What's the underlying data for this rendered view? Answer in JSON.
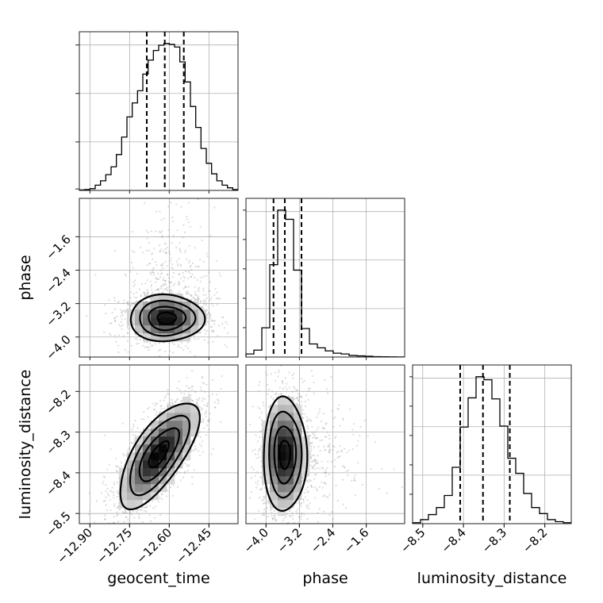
{
  "chart_data": {
    "type": "corner",
    "parameters": [
      "geocent_time",
      "phase",
      "luminosity_distance"
    ],
    "axes": {
      "geocent_time": {
        "label": "geocent_time",
        "range": [
          -12.94,
          -12.34
        ],
        "ticks": [
          -12.9,
          -12.75,
          -12.6,
          -12.45
        ],
        "tick_labels": [
          "−12.90",
          "−12.75",
          "−12.60",
          "−12.45"
        ]
      },
      "phase": {
        "label": "phase",
        "range": [
          -4.48,
          -0.68
        ],
        "ticks": [
          -4.0,
          -3.2,
          -2.4,
          -1.6
        ],
        "tick_labels": [
          "−4.0",
          "−3.2",
          "−2.4",
          "−1.6"
        ]
      },
      "luminosity_distance": {
        "label": "luminosity_distance",
        "range": [
          -8.525,
          -8.135
        ],
        "ticks": [
          -8.5,
          -8.4,
          -8.3,
          -8.2
        ],
        "tick_labels": [
          "−8.5",
          "−8.4",
          "−8.3",
          "−8.2"
        ]
      }
    },
    "histograms": [
      {
        "parameter": "geocent_time",
        "bin_edges": [
          -12.94,
          -12.92,
          -12.9,
          -12.88,
          -12.86,
          -12.84,
          -12.82,
          -12.8,
          -12.78,
          -12.76,
          -12.74,
          -12.72,
          -12.7,
          -12.68,
          -12.66,
          -12.64,
          -12.62,
          -12.6,
          -12.58,
          -12.56,
          -12.54,
          -12.52,
          -12.5,
          -12.48,
          -12.46,
          -12.44,
          -12.42,
          -12.4,
          -12.38,
          -12.36,
          -12.34
        ],
        "counts": [
          0.5,
          1,
          2,
          6,
          11,
          18,
          27,
          41,
          61,
          84,
          100,
          114,
          133,
          149,
          160,
          166,
          168,
          167,
          164,
          147,
          124,
          96,
          72,
          48,
          31,
          19,
          11,
          6,
          3,
          1
        ],
        "quantiles": [
          -12.685,
          -12.617,
          -12.545
        ]
      },
      {
        "parameter": "phase",
        "bin_edges": [
          -4.48,
          -4.29,
          -4.1,
          -3.91,
          -3.72,
          -3.53,
          -3.34,
          -3.15,
          -2.96,
          -2.77,
          -2.58,
          -2.39,
          -2.2,
          -2.01,
          -1.82,
          -1.63,
          -1.44,
          -1.25,
          -1.06,
          -0.87,
          -0.68
        ],
        "counts": [
          4,
          9,
          38,
          120,
          191,
          179,
          113,
          37,
          17,
          12,
          8,
          5,
          4,
          2,
          1.5,
          1,
          0.5,
          0.3,
          0.2,
          0.1
        ],
        "quantiles": [
          -3.82,
          -3.55,
          -3.15
        ]
      },
      {
        "parameter": "luminosity_distance",
        "bin_edges": [
          -8.525,
          -8.5055,
          -8.486,
          -8.4665,
          -8.447,
          -8.4275,
          -8.408,
          -8.3885,
          -8.369,
          -8.3495,
          -8.33,
          -8.3105,
          -8.291,
          -8.2715,
          -8.252,
          -8.2325,
          -8.213,
          -8.1935,
          -8.174,
          -8.1545,
          -8.135
        ],
        "counts": [
          1,
          4,
          9,
          16,
          28,
          56,
          96,
          125,
          146,
          143,
          124,
          97,
          65,
          50,
          30,
          16,
          10,
          4,
          2,
          1
        ],
        "quantiles": [
          -8.408,
          -8.352,
          -8.286
        ]
      }
    ],
    "joint_panels": [
      {
        "x": "geocent_time",
        "y": "phase",
        "peak": [
          -12.61,
          -3.55
        ],
        "sigma": [
          0.07,
          0.28
        ],
        "correlation": 0,
        "contour_levels_sigma": [
          0.5,
          1.0,
          1.5,
          2.0
        ]
      },
      {
        "x": "geocent_time",
        "y": "luminosity_distance",
        "peak": [
          -12.64,
          -8.355
        ],
        "sigma": [
          0.075,
          0.065
        ],
        "correlation": 0.7,
        "contour_levels_sigma": [
          0.5,
          1.0,
          1.5,
          2.0
        ]
      },
      {
        "x": "phase",
        "y": "luminosity_distance",
        "peak": [
          -3.55,
          -8.355
        ],
        "sigma": [
          0.26,
          0.07
        ],
        "correlation": 0,
        "contour_levels_sigma": [
          0.5,
          1.0,
          1.5,
          2.0
        ]
      }
    ],
    "grid": true
  }
}
